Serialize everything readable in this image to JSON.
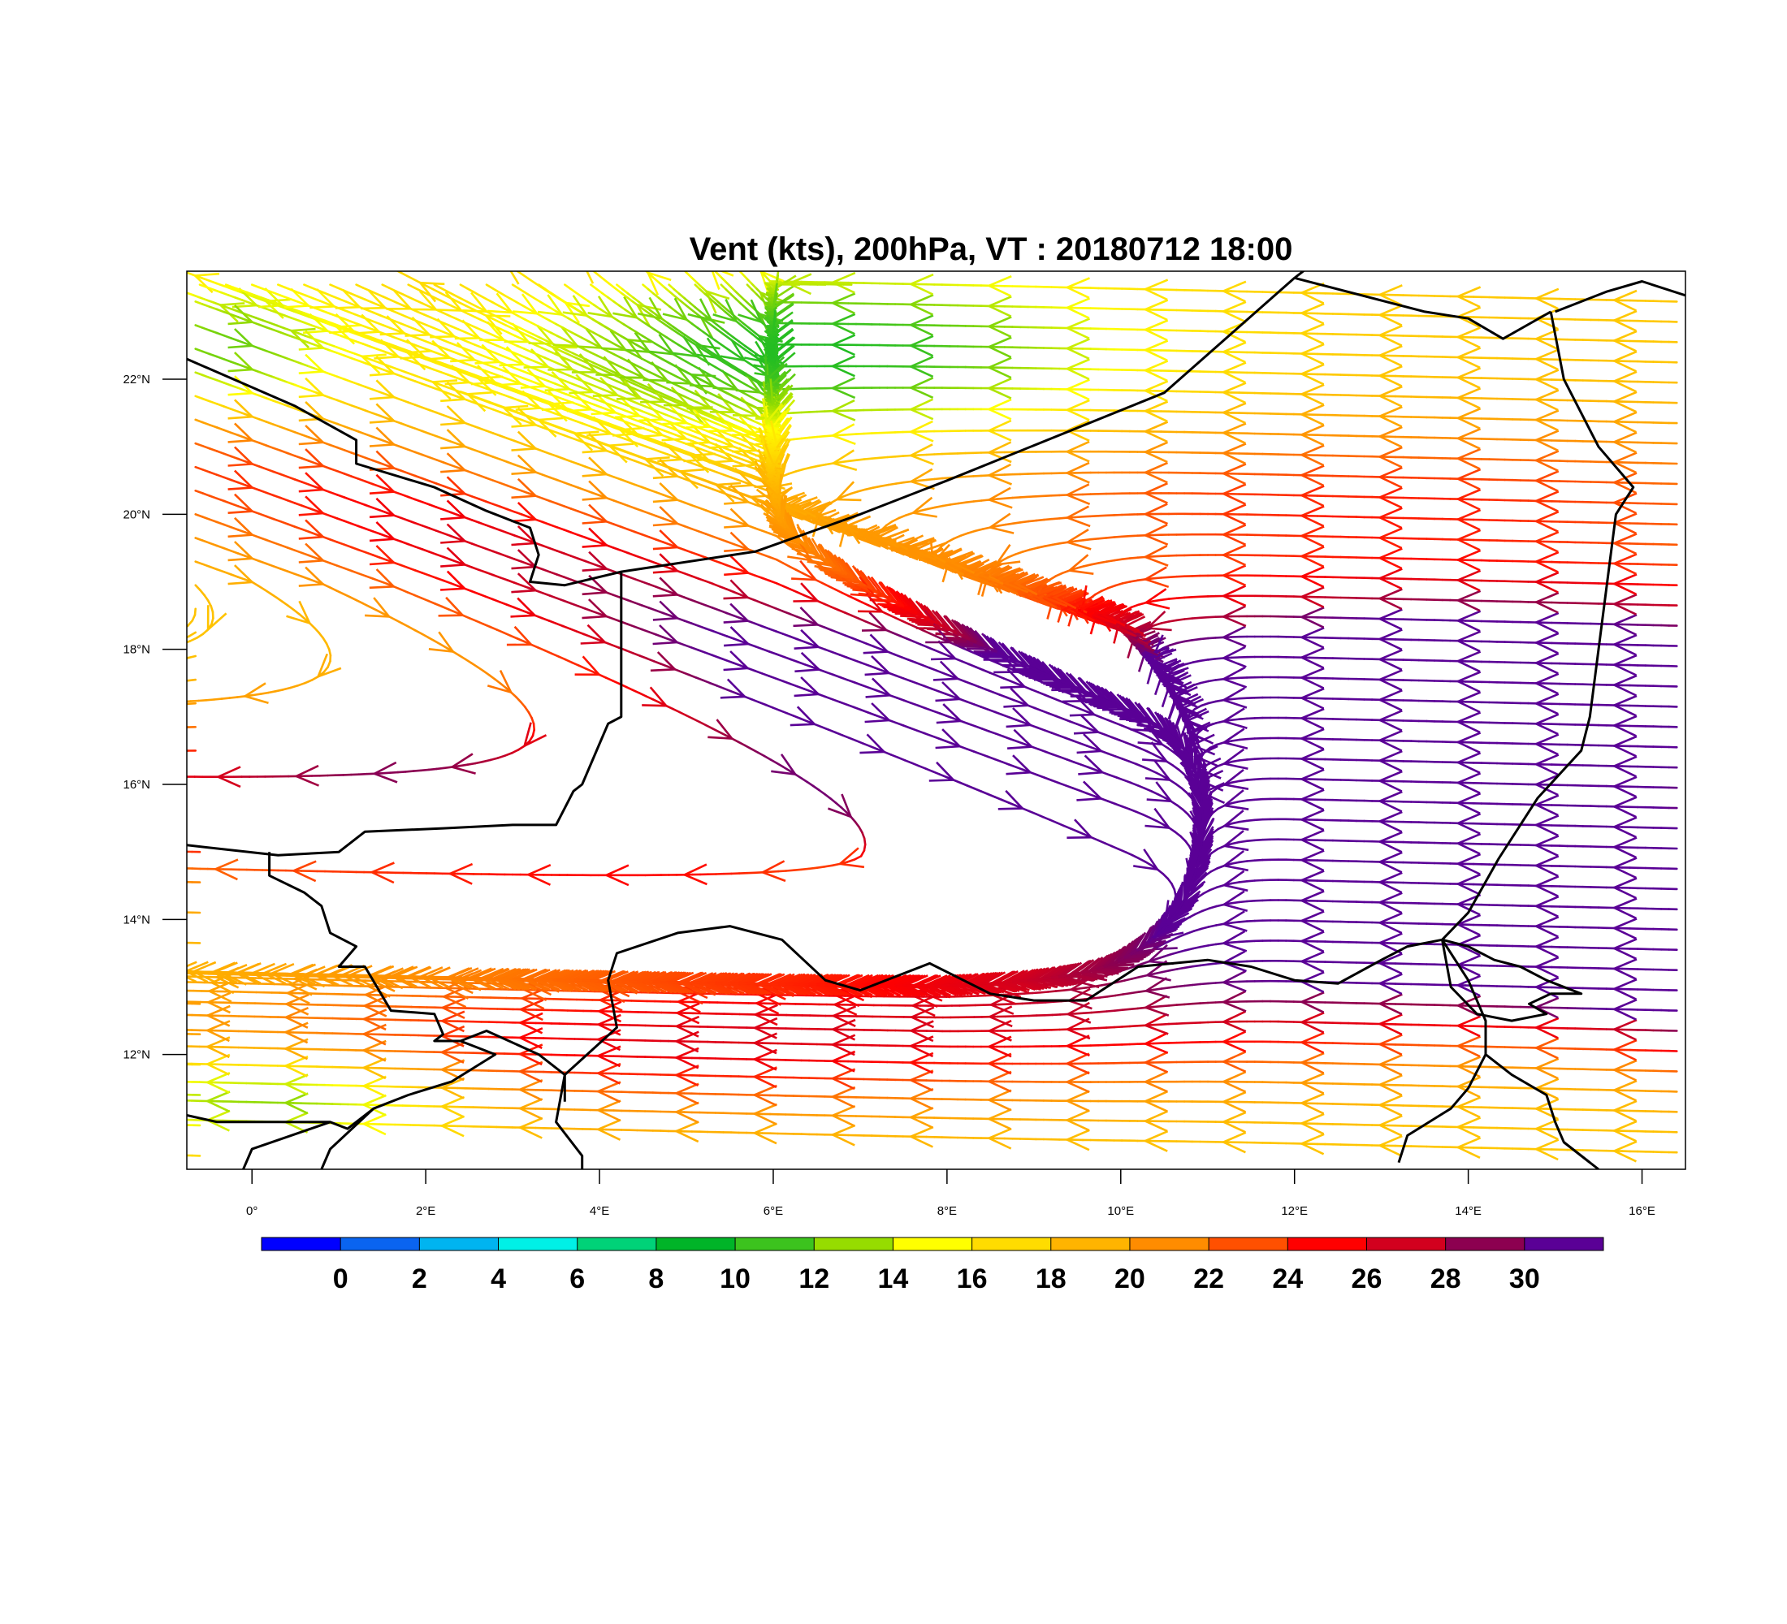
{
  "title": "Vent (kts), 200hPa, VT : 20180712  18:00",
  "map": {
    "lon_range": [
      -0.75,
      16.5
    ],
    "lat_range": [
      10.3,
      23.6
    ],
    "x_ticks": [
      {
        "value": 0,
        "label": "0°"
      },
      {
        "value": 2,
        "label": "2°E"
      },
      {
        "value": 4,
        "label": "4°E"
      },
      {
        "value": 6,
        "label": "6°E"
      },
      {
        "value": 8,
        "label": "8°E"
      },
      {
        "value": 10,
        "label": "10°E"
      },
      {
        "value": 12,
        "label": "12°E"
      },
      {
        "value": 14,
        "label": "14°E"
      },
      {
        "value": 16,
        "label": "16°E"
      }
    ],
    "y_ticks": [
      {
        "value": 12,
        "label": "12°N"
      },
      {
        "value": 14,
        "label": "14°N"
      },
      {
        "value": 16,
        "label": "16°N"
      },
      {
        "value": 18,
        "label": "18°N"
      },
      {
        "value": 20,
        "label": "20°N"
      },
      {
        "value": 22,
        "label": "22°N"
      }
    ],
    "borders_color": "#000000",
    "wind_field": "streamlines with arrowheads, colored by wind speed (kts), generally flowing east to west; strongest (>30 kts) band from ~20°N,1°E diagonally to ~16°N,8°E and zonal jets 13–18°N east of 8°E"
  },
  "colorbar": {
    "colors": [
      "#0000ff",
      "#0a64f0",
      "#00b4f0",
      "#00f0e6",
      "#00d278",
      "#00b428",
      "#3cc31e",
      "#96dc00",
      "#ffff00",
      "#ffdc00",
      "#ffb400",
      "#ff8c00",
      "#ff5000",
      "#ff0000",
      "#d2001e",
      "#8c0050",
      "#5a0096"
    ],
    "labels": [
      "0",
      "2",
      "4",
      "6",
      "8",
      "10",
      "12",
      "14",
      "16",
      "18",
      "20",
      "22",
      "24",
      "26",
      "28",
      "30"
    ]
  }
}
